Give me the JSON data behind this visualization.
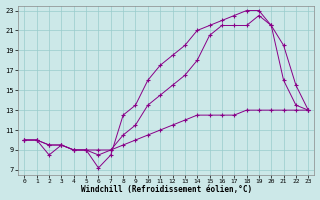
{
  "xlabel": "Windchill (Refroidissement éolien,°C)",
  "bg_color": "#cce8e8",
  "line_color": "#880088",
  "xlim": [
    -0.5,
    23.5
  ],
  "ylim": [
    6.5,
    23.5
  ],
  "xticks": [
    0,
    1,
    2,
    3,
    4,
    5,
    6,
    7,
    8,
    9,
    10,
    11,
    12,
    13,
    14,
    15,
    16,
    17,
    18,
    19,
    20,
    21,
    22,
    23
  ],
  "yticks": [
    7,
    9,
    11,
    13,
    15,
    17,
    19,
    21,
    23
  ],
  "line1_x": [
    0,
    1,
    2,
    3,
    4,
    5,
    6,
    7,
    8,
    9,
    10,
    11,
    12,
    13,
    14,
    15,
    16,
    17,
    18,
    19,
    20,
    21,
    22,
    23
  ],
  "line1_y": [
    10.0,
    10.0,
    8.5,
    9.5,
    9.0,
    9.0,
    7.2,
    8.5,
    12.5,
    13.5,
    16.0,
    17.5,
    18.5,
    19.5,
    21.0,
    21.5,
    22.0,
    22.5,
    23.0,
    23.0,
    21.5,
    19.5,
    15.5,
    13.0
  ],
  "line2_x": [
    0,
    1,
    2,
    3,
    4,
    5,
    6,
    7,
    8,
    9,
    10,
    11,
    12,
    13,
    14,
    15,
    16,
    17,
    18,
    19,
    20,
    21,
    22,
    23
  ],
  "line2_y": [
    10.0,
    10.0,
    9.5,
    9.5,
    9.0,
    9.0,
    8.5,
    9.0,
    10.5,
    11.5,
    13.5,
    14.5,
    15.5,
    16.5,
    18.0,
    20.5,
    21.5,
    21.5,
    21.5,
    22.5,
    21.5,
    16.0,
    13.5,
    13.0
  ],
  "line3_x": [
    0,
    1,
    2,
    3,
    4,
    5,
    6,
    7,
    8,
    9,
    10,
    11,
    12,
    13,
    14,
    15,
    16,
    17,
    18,
    19,
    20,
    21,
    22,
    23
  ],
  "line3_y": [
    10.0,
    10.0,
    9.5,
    9.5,
    9.0,
    9.0,
    9.0,
    9.0,
    9.5,
    10.0,
    10.5,
    11.0,
    11.5,
    12.0,
    12.5,
    12.5,
    12.5,
    12.5,
    13.0,
    13.0,
    13.0,
    13.0,
    13.0,
    13.0
  ]
}
